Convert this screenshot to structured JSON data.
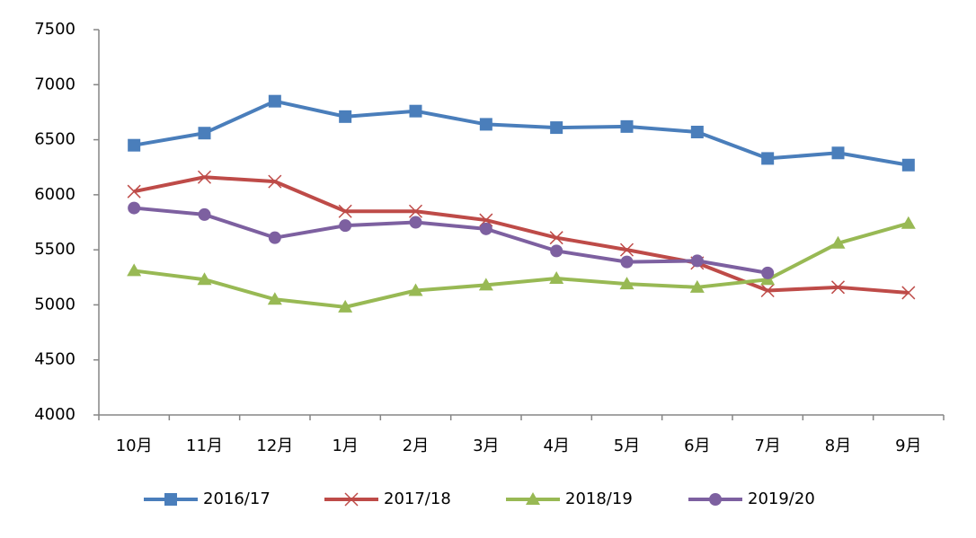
{
  "chart_data": {
    "type": "line",
    "categories": [
      "10月",
      "11月",
      "12月",
      "1月",
      "2月",
      "3月",
      "4月",
      "5月",
      "6月",
      "7月",
      "8月",
      "9月"
    ],
    "series": [
      {
        "name": "2016/17",
        "color": "#4a7ebb",
        "marker": "square",
        "values": [
          6450,
          6560,
          6850,
          6710,
          6760,
          6640,
          6610,
          6620,
          6570,
          6330,
          6380,
          6270
        ]
      },
      {
        "name": "2017/18",
        "color": "#be4b48",
        "marker": "x",
        "values": [
          6030,
          6160,
          6120,
          5850,
          5850,
          5770,
          5610,
          5500,
          5380,
          5130,
          5160,
          5110
        ]
      },
      {
        "name": "2018/19",
        "color": "#98b954",
        "marker": "triangle",
        "values": [
          5310,
          5230,
          5050,
          4980,
          5130,
          5180,
          5240,
          5190,
          5160,
          5230,
          5560,
          5740
        ]
      },
      {
        "name": "2019/20",
        "color": "#7d60a0",
        "marker": "circle",
        "values": [
          5880,
          5820,
          5610,
          5720,
          5750,
          5690,
          5490,
          5390,
          5400,
          5290,
          null,
          null
        ]
      }
    ],
    "ylim": [
      4000,
      7500
    ],
    "yticks": [
      4000,
      4500,
      5000,
      5500,
      6000,
      6500,
      7000,
      7500
    ],
    "legend": "bottom"
  }
}
